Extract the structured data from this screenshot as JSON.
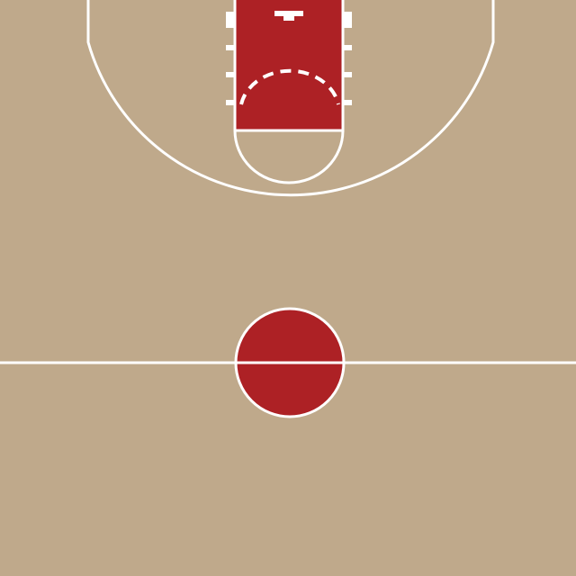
{
  "court": {
    "floor_color": "#bfa98b",
    "paint_color": "#ad2125",
    "line_color": "#ffffff",
    "elements": [
      "three-point-arc",
      "paint-key",
      "free-throw-circle",
      "restricted-area-arc",
      "backboard",
      "lane-hash-marks",
      "half-court-line",
      "center-circle"
    ]
  }
}
